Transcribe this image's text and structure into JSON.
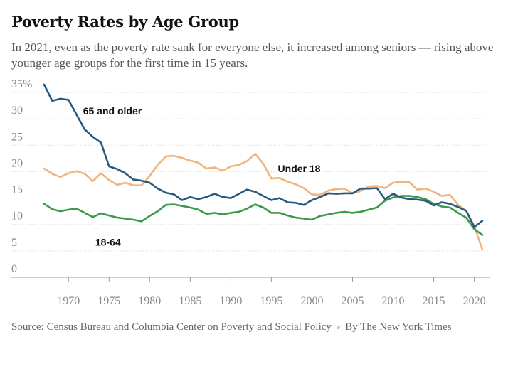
{
  "title": "Poverty Rates by Age Group",
  "subtitle": "In 2021, even as the poverty rate sank for everyone else, it increased among seniors — rising above younger age groups for the first time in 15 years.",
  "source": {
    "text": "Source: Census Bureau and Columbia Center on Poverty and Social Policy",
    "byline": "By The New York Times"
  },
  "chart_data": {
    "type": "line",
    "xlim": [
      1965,
      2022
    ],
    "ylim": [
      0,
      37
    ],
    "x_ticks": [
      1970,
      1975,
      1980,
      1985,
      1990,
      1995,
      2000,
      2005,
      2010,
      2015,
      2020
    ],
    "y_ticks": [
      {
        "value": 35,
        "label": "35%"
      },
      {
        "value": 30,
        "label": "30"
      },
      {
        "value": 25,
        "label": "25"
      },
      {
        "value": 20,
        "label": "20"
      },
      {
        "value": 15,
        "label": "15"
      },
      {
        "value": 10,
        "label": "10"
      },
      {
        "value": 5,
        "label": "5"
      },
      {
        "value": 0,
        "label": "0"
      }
    ],
    "grid": true,
    "x": [
      1967,
      1968,
      1969,
      1970,
      1971,
      1972,
      1973,
      1974,
      1975,
      1976,
      1977,
      1978,
      1979,
      1980,
      1981,
      1982,
      1983,
      1984,
      1985,
      1986,
      1987,
      1988,
      1989,
      1990,
      1991,
      1992,
      1993,
      1994,
      1995,
      1996,
      1997,
      1998,
      1999,
      2000,
      2001,
      2002,
      2003,
      2004,
      2005,
      2006,
      2007,
      2008,
      2009,
      2010,
      2011,
      2012,
      2013,
      2014,
      2015,
      2016,
      2017,
      2018,
      2019,
      2020,
      2021
    ],
    "series": [
      {
        "name": "65 and older",
        "color": "#27587f",
        "values": [
          36.5,
          33.4,
          33.8,
          33.6,
          30.8,
          28.0,
          26.6,
          25.5,
          21.0,
          20.5,
          19.7,
          18.5,
          18.3,
          17.9,
          16.8,
          16.0,
          15.7,
          14.6,
          15.2,
          14.8,
          15.2,
          15.8,
          15.2,
          15.0,
          15.8,
          16.6,
          16.2,
          15.4,
          14.6,
          15.0,
          14.2,
          14.1,
          13.7,
          14.6,
          15.2,
          15.9,
          15.8,
          15.9,
          15.9,
          16.8,
          16.8,
          16.9,
          14.8,
          15.8,
          15.1,
          14.8,
          14.7,
          14.5,
          13.6,
          14.2,
          13.9,
          13.3,
          12.6,
          9.5,
          10.7
        ]
      },
      {
        "name": "Under 18",
        "color": "#f2b47e",
        "values": [
          20.6,
          19.6,
          19.0,
          19.7,
          20.1,
          19.6,
          18.2,
          19.7,
          18.4,
          17.5,
          17.9,
          17.4,
          17.4,
          19.2,
          21.3,
          22.9,
          23.0,
          22.6,
          22.1,
          21.7,
          20.6,
          20.8,
          20.2,
          21.0,
          21.3,
          22.0,
          23.4,
          21.5,
          18.7,
          18.8,
          18.1,
          17.6,
          16.9,
          15.7,
          15.6,
          16.4,
          16.7,
          16.8,
          15.9,
          16.3,
          17.2,
          17.3,
          16.9,
          17.9,
          18.1,
          18.0,
          16.6,
          16.8,
          16.2,
          15.4,
          15.6,
          13.7,
          12.6,
          9.7,
          5.2
        ]
      },
      {
        "name": "18-64",
        "color": "#3b9a4a",
        "values": [
          13.9,
          12.9,
          12.5,
          12.8,
          13.0,
          12.2,
          11.4,
          12.1,
          11.7,
          11.3,
          11.1,
          10.9,
          10.6,
          11.6,
          12.5,
          13.7,
          13.8,
          13.5,
          13.2,
          12.8,
          12.0,
          12.2,
          11.9,
          12.2,
          12.4,
          13.0,
          13.8,
          13.2,
          12.2,
          12.2,
          11.7,
          11.3,
          11.1,
          10.9,
          11.6,
          11.9,
          12.2,
          12.4,
          12.2,
          12.4,
          12.8,
          13.2,
          14.5,
          15.1,
          15.4,
          15.4,
          15.2,
          14.8,
          13.9,
          13.4,
          13.2,
          12.2,
          11.3,
          9.1,
          8.0
        ]
      }
    ],
    "annotations": [
      {
        "text": "65 and older",
        "x": 1971.8,
        "y": 30.8
      },
      {
        "text": "Under 18",
        "x": 1995.8,
        "y": 19.9
      },
      {
        "text": "18-64",
        "x": 1973.3,
        "y": 6.0
      }
    ]
  }
}
